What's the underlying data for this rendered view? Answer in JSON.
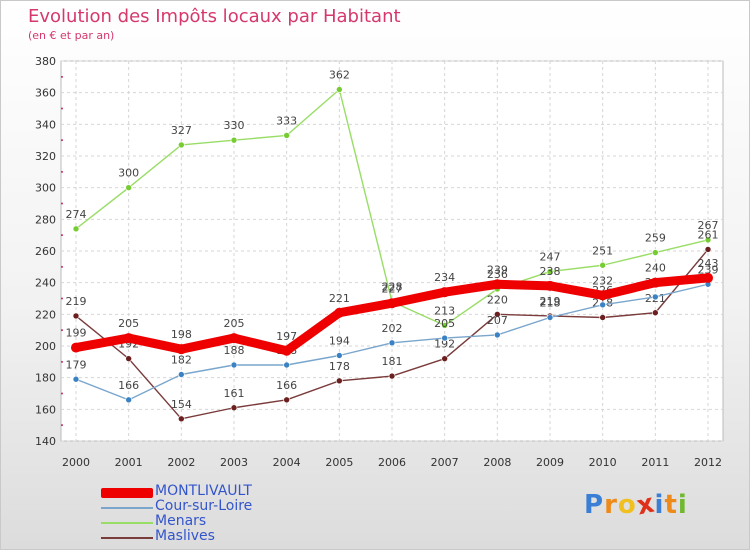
{
  "chart_data": {
    "type": "line",
    "title": "Evolution des Impôts locaux par Habitant",
    "subtitle": "(en € et par an)",
    "categories": [
      "2000",
      "2001",
      "2002",
      "2003",
      "2004",
      "2005",
      "2006",
      "2007",
      "2008",
      "2009",
      "2010",
      "2011",
      "2012"
    ],
    "ylim": [
      140,
      380
    ],
    "yticks": [
      140,
      160,
      180,
      200,
      220,
      240,
      260,
      280,
      300,
      320,
      340,
      360,
      380
    ],
    "grid": true,
    "legend_position": "bottom-left",
    "series": [
      {
        "name": "Menars",
        "color": "#99dd66",
        "dot": "#77cc33",
        "values": [
          274,
          300,
          327,
          330,
          333,
          362,
          228,
          213,
          236,
          247,
          251,
          259,
          267
        ]
      },
      {
        "name": "Maslives",
        "color": "#7a3b3b",
        "dot": "#6b1f1f",
        "values": [
          219,
          192,
          154,
          161,
          166,
          178,
          181,
          192,
          220,
          219,
          218,
          221,
          261
        ]
      },
      {
        "name": "Cour-sur-Loire",
        "color": "#7aa6cc",
        "dot": "#3b82c4",
        "values": [
          179,
          166,
          182,
          188,
          188,
          194,
          202,
          205,
          207,
          218,
          226,
          231,
          239
        ]
      },
      {
        "name": "MONTLIVAULT",
        "color": "#ee0000",
        "dot": "#ee0000",
        "bold": true,
        "values": [
          199,
          205,
          198,
          205,
          197,
          221,
          227,
          234,
          239,
          238,
          232,
          240,
          243
        ]
      }
    ]
  },
  "legend": [
    {
      "name": "MONTLIVAULT",
      "color": "#ee0000"
    },
    {
      "name": "Cour-sur-Loire",
      "color": "#7aa6cc"
    },
    {
      "name": "Menars",
      "color": "#99dd66"
    },
    {
      "name": "Maslives",
      "color": "#7a3b3b"
    }
  ],
  "brand": {
    "text": "Proxiti",
    "letters": [
      "P",
      "r",
      "o",
      "x",
      "i",
      "t",
      "i"
    ],
    "colors": [
      "#3a7fd5",
      "#ee8a1a",
      "#f0c020",
      "#e0301a",
      "#3a7fd5",
      "#ee8a1a",
      "#70b830"
    ]
  }
}
